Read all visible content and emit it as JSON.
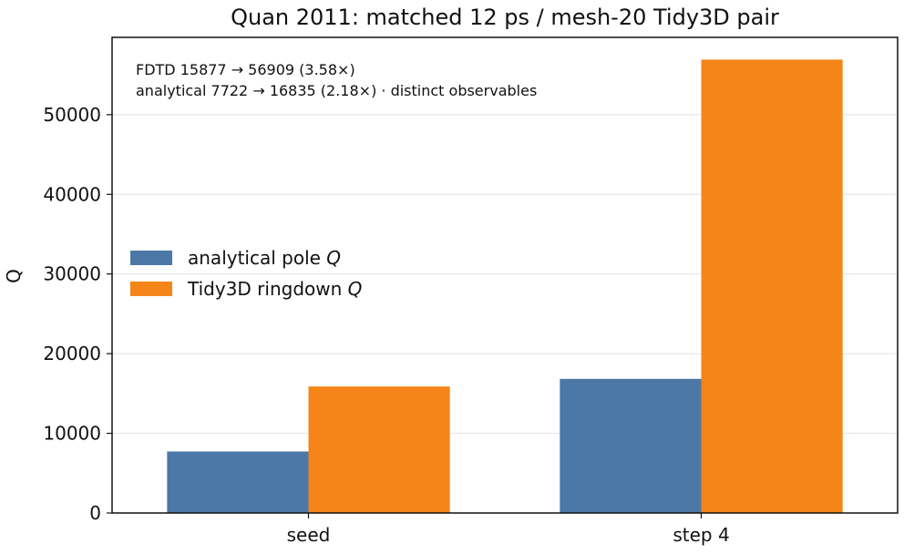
{
  "chart_data": {
    "type": "bar",
    "title": "Quan 2011: matched 12 ps / mesh-20 Tidy3D pair",
    "xlabel": "",
    "ylabel": "Q",
    "categories": [
      "seed",
      "step 4"
    ],
    "series": [
      {
        "name": "analytical pole Q",
        "values": [
          7722,
          16835
        ],
        "color": "#4c78a8"
      },
      {
        "name": "Tidy3D ringdown Q",
        "values": [
          15877,
          56909
        ],
        "color": "#f58518"
      }
    ],
    "ylim": [
      0,
      59700
    ],
    "yticks": [
      0,
      10000,
      20000,
      30000,
      40000,
      50000
    ],
    "ytick_labels": [
      "0",
      "10000",
      "20000",
      "30000",
      "40000",
      "50000"
    ],
    "grid": "horizontal",
    "legend_placement": "center-left",
    "annotations": [
      "FDTD 15877 → 56909  (3.58×)",
      "analytical 7722 → 16835 (2.18×)  ·  distinct observables"
    ]
  }
}
